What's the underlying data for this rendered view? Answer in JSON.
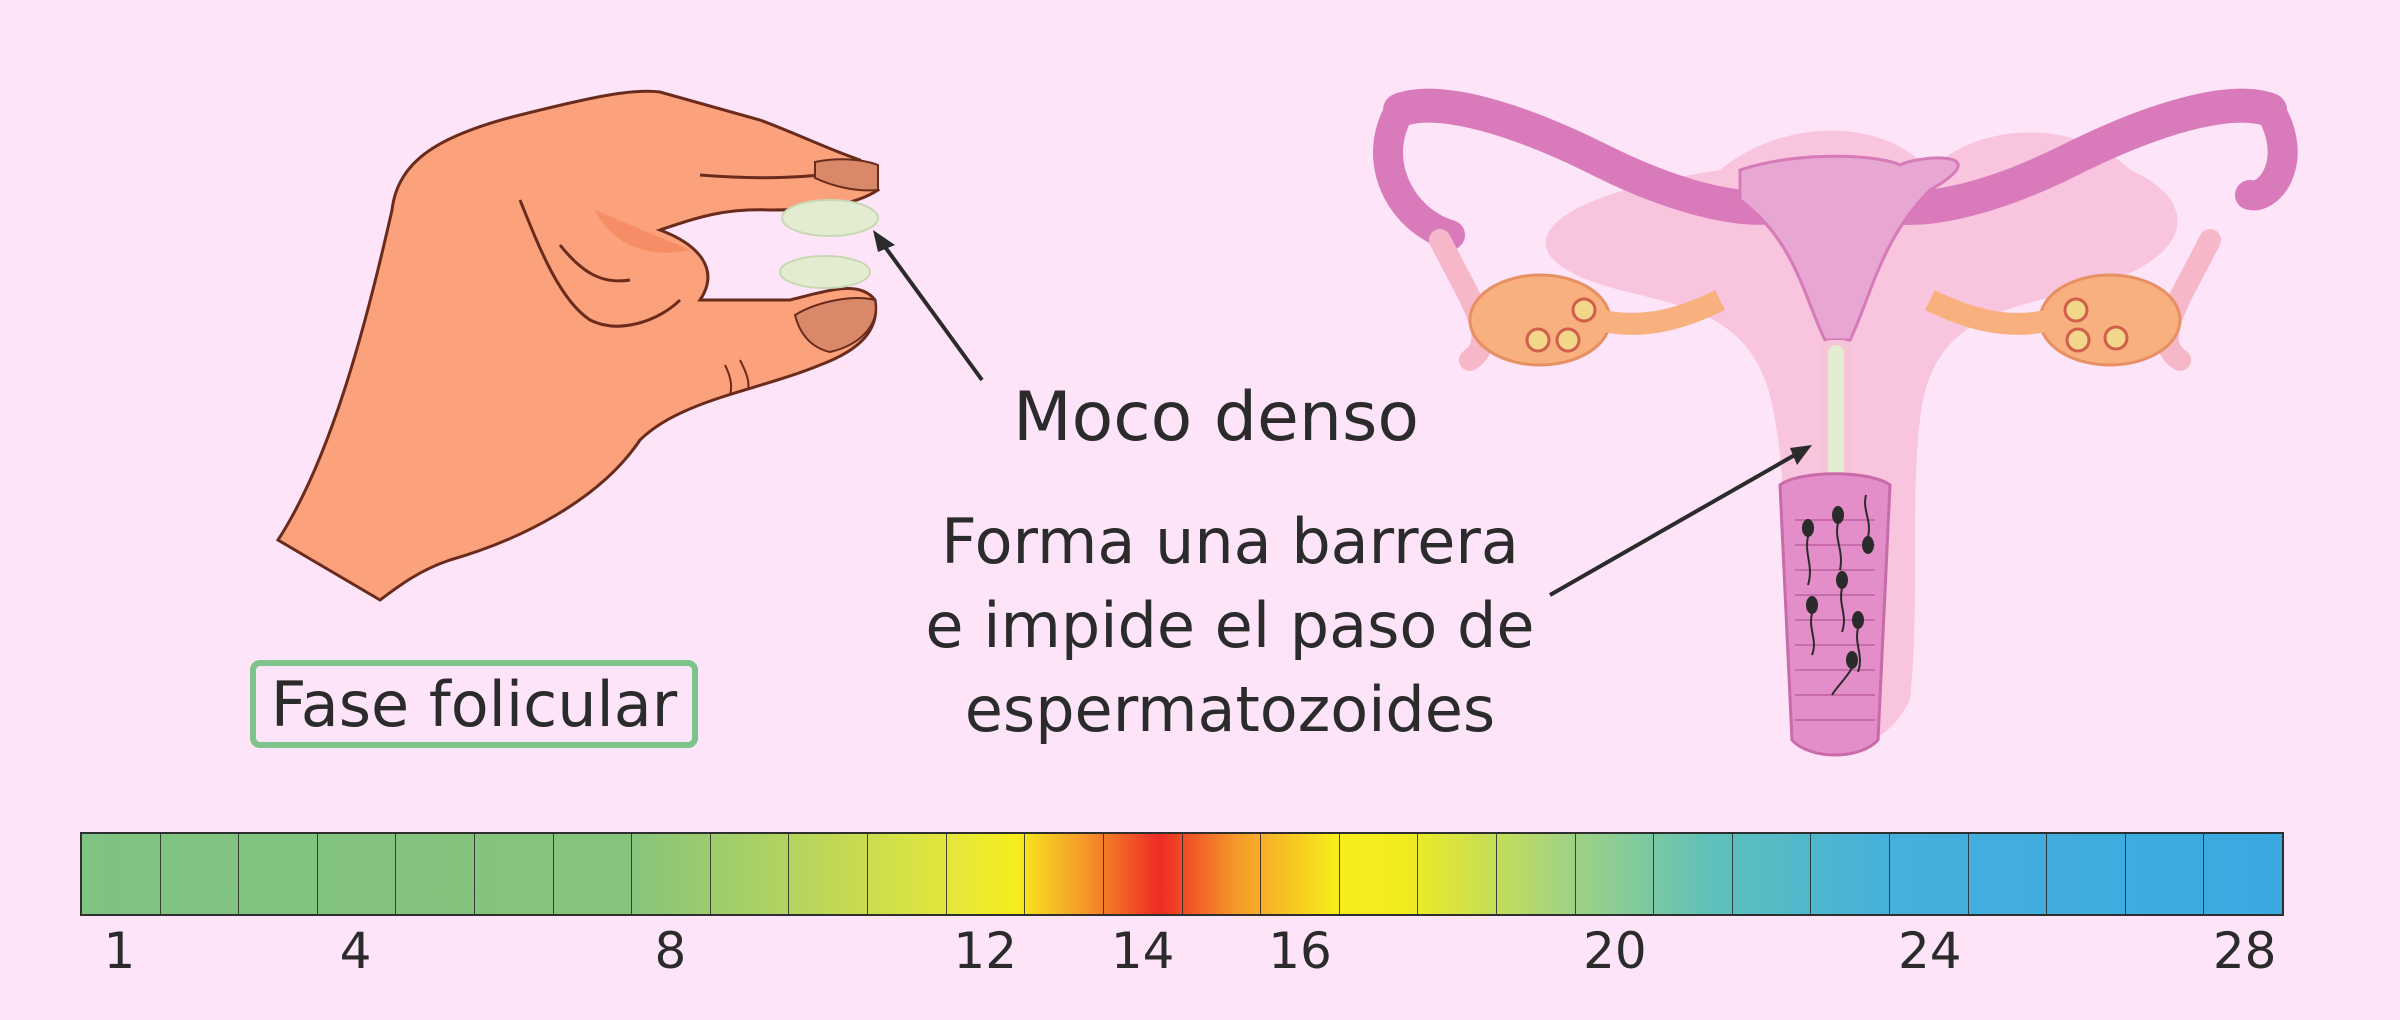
{
  "annotation": {
    "title": "Moco denso",
    "description_lines": [
      "Forma una barrera",
      "e impide el paso de",
      "espermatozoides"
    ]
  },
  "phase_label": "Fase folicular",
  "cycle_scale": {
    "days": 28,
    "tick_labels": [
      "1",
      "4",
      "8",
      "12",
      "14",
      "16",
      "20",
      "24",
      "28"
    ],
    "tick_days": [
      1,
      4,
      8,
      12,
      14,
      16,
      20,
      24,
      28
    ]
  },
  "colors": {
    "background": "#fde4f8",
    "skin": "#fba27c",
    "uterus": "#ea9fd0",
    "mucus": "#e3ecd0",
    "badge_border": "#7cc489"
  },
  "icons": [
    "hand-pinching-mucus-illustration",
    "uterus-illustration",
    "sperm-icon"
  ]
}
